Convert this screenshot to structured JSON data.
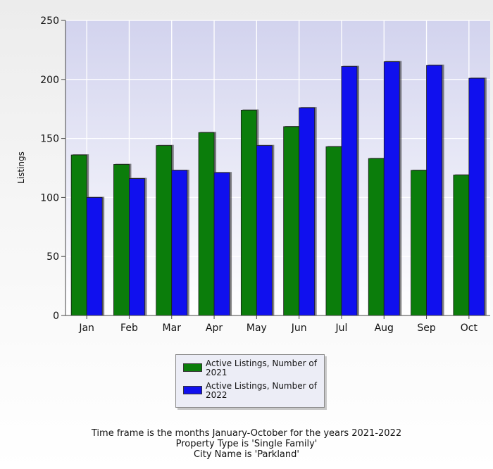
{
  "chart_data": {
    "type": "bar",
    "ylabel": "Listings",
    "xlabel": "",
    "ylim": [
      0,
      250
    ],
    "yticks": [
      0,
      50,
      100,
      150,
      200,
      250
    ],
    "grid": true,
    "legend_position": "bottom-center",
    "categories": [
      "Jan",
      "Feb",
      "Mar",
      "Apr",
      "May",
      "Jun",
      "Jul",
      "Aug",
      "Sep",
      "Oct"
    ],
    "series": [
      {
        "name": "Active Listings, Number of 2021",
        "color": "#0b7d0b",
        "values": [
          136,
          128,
          144,
          155,
          174,
          160,
          143,
          133,
          123,
          119
        ]
      },
      {
        "name": "Active Listings, Number of 2022",
        "color": "#1010ee",
        "values": [
          100,
          116,
          123,
          121,
          144,
          176,
          211,
          215,
          212,
          201
        ]
      }
    ]
  },
  "legend": {
    "items": [
      {
        "line1": "Active Listings, Number of",
        "line2": "2021"
      },
      {
        "line1": "Active Listings, Number of",
        "line2": "2022"
      }
    ]
  },
  "caption": {
    "line1": "Time frame is the months January-October for the years 2021-2022",
    "line2": "Property Type is 'Single Family'",
    "line3": "City Name is 'Parkland'"
  }
}
